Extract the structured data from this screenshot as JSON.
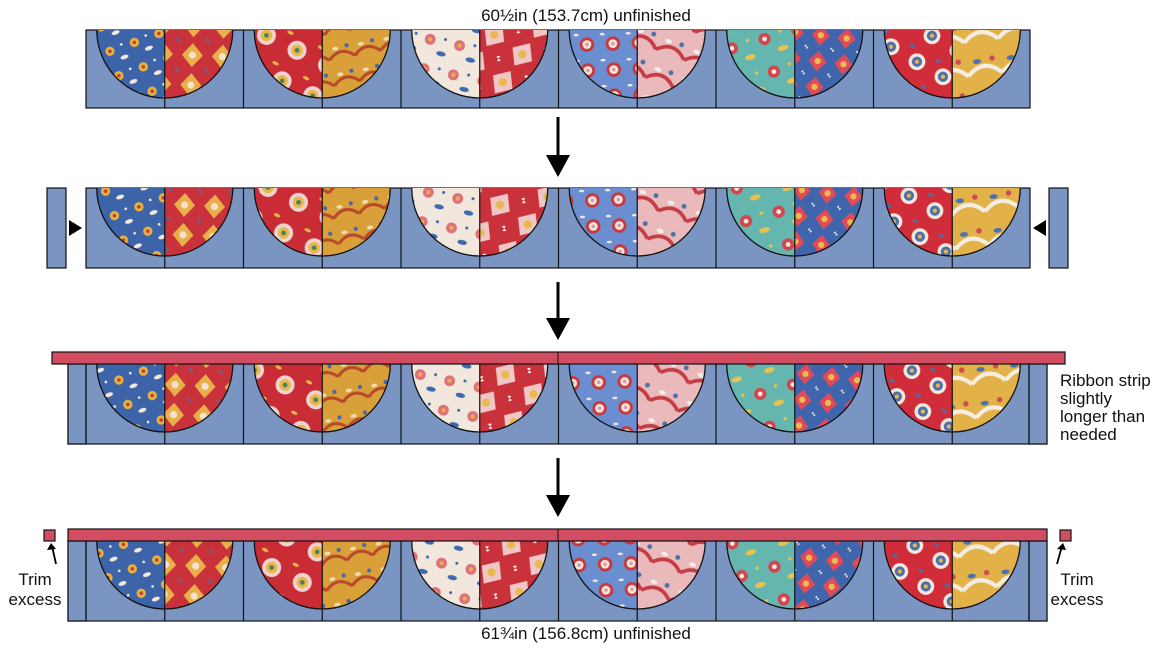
{
  "diagram": {
    "top_dimension": "60½in (153.7cm) unfinished",
    "bottom_dimension": "61¾in (156.8cm) unfinished",
    "ribbon_note": [
      "Ribbon strip",
      "slightly",
      "longer than",
      "needed"
    ],
    "trim_left": [
      "Trim",
      "excess"
    ],
    "trim_right": [
      "Trim",
      "excess"
    ],
    "panel_count": 6,
    "colors": {
      "background_fabric": "#7a95c2",
      "ribbon": "#d24d62",
      "outline": "#111111",
      "arrow": "#000000"
    },
    "fabrics": [
      {
        "name": "blue-floral",
        "base": "#3d63a8",
        "accent1": "#e6b43a",
        "accent2": "#f4eadb",
        "accent3": "#c73a3f"
      },
      {
        "name": "red-paisley",
        "base": "#c9313b",
        "accent1": "#e9b04a",
        "accent2": "#f3e2cf",
        "accent3": "#4b6fae"
      },
      {
        "name": "red-floral",
        "base": "#c92c35",
        "accent1": "#f0d3d0",
        "accent2": "#e6b84a",
        "accent3": "#4d7f5c"
      },
      {
        "name": "mustard-paisley",
        "base": "#d9a03a",
        "accent1": "#b84a2a",
        "accent2": "#f1dcb0",
        "accent3": "#4a66a8"
      },
      {
        "name": "cream-floral",
        "base": "#f1e7dc",
        "accent1": "#de6f7c",
        "accent2": "#3e69ae",
        "accent3": "#e7b14a"
      },
      {
        "name": "red-lattice",
        "base": "#c9323a",
        "accent1": "#f1c6c6",
        "accent2": "#e8b94d",
        "accent3": "#f6efe5"
      },
      {
        "name": "blue-leaves",
        "base": "#6a8ed0",
        "accent1": "#c8393e",
        "accent2": "#f3e8df",
        "accent3": "#e09a9f"
      },
      {
        "name": "pink-paisley",
        "base": "#e9b9bc",
        "accent1": "#c53c45",
        "accent2": "#f5ece7",
        "accent3": "#4f6fa9"
      },
      {
        "name": "teal-floral",
        "base": "#66b6b0",
        "accent1": "#d2464f",
        "accent2": "#e7c24f",
        "accent3": "#f2ece3"
      },
      {
        "name": "blue-lattice",
        "base": "#3f65ad",
        "accent1": "#e14a58",
        "accent2": "#e7be4d",
        "accent3": "#f1e7da"
      },
      {
        "name": "red-coral",
        "base": "#d02c39",
        "accent1": "#f4e9dd",
        "accent2": "#4c6eab",
        "accent3": "#e6b84b"
      },
      {
        "name": "gold-medallion",
        "base": "#e2b249",
        "accent1": "#f5ede2",
        "accent2": "#4c70b1",
        "accent3": "#d14857"
      }
    ]
  }
}
